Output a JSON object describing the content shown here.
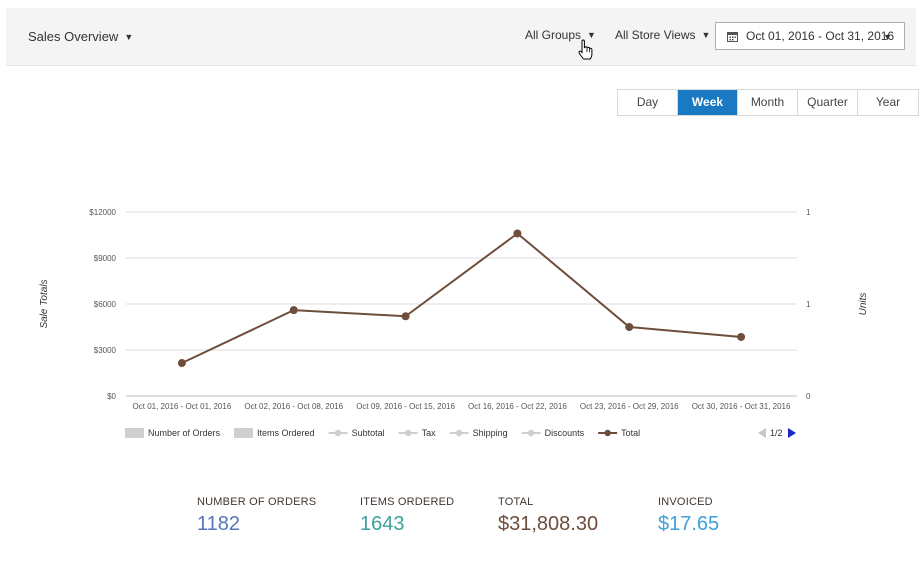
{
  "header": {
    "overview_label": "Sales Overview",
    "groups_label": "All Groups",
    "stores_label": "All Store Views",
    "date_range": "Oct 01, 2016 - Oct 31, 2016"
  },
  "periods": [
    {
      "label": "Day",
      "active": false
    },
    {
      "label": "Week",
      "active": true
    },
    {
      "label": "Month",
      "active": false
    },
    {
      "label": "Quarter",
      "active": false
    },
    {
      "label": "Year",
      "active": false
    }
  ],
  "chart_data": {
    "type": "line",
    "categories": [
      "Oct 01, 2016 - Oct 01, 2016",
      "Oct 02, 2016 - Oct 08, 2016",
      "Oct 09, 2016 - Oct 15, 2016",
      "Oct 16, 2016 - Oct 22, 2016",
      "Oct 23, 2016 - Oct 29, 2016",
      "Oct 30, 2016 - Oct 31, 2016"
    ],
    "series": [
      {
        "name": "Total",
        "values": [
          2150,
          5600,
          5200,
          10600,
          4500,
          3850
        ],
        "color": "#6e4d3b"
      }
    ],
    "ylabel_left": "Sale Totals",
    "ylabel_right": "Units",
    "y_ticks_left": [
      "$0",
      "$3000",
      "$6000",
      "$9000",
      "$12000"
    ],
    "y_ticks_right": [
      "0",
      "1",
      "1"
    ],
    "ylim": [
      0,
      12000
    ],
    "grid": true,
    "legend": {
      "placement": "bottom",
      "items": [
        {
          "label": "Number of Orders",
          "kind": "box",
          "color": "#cfcfcf"
        },
        {
          "label": "Items Ordered",
          "kind": "box",
          "color": "#cfcfcf"
        },
        {
          "label": "Subtotal",
          "kind": "line",
          "color": "#cfcfcf"
        },
        {
          "label": "Tax",
          "kind": "line",
          "color": "#cfcfcf"
        },
        {
          "label": "Shipping",
          "kind": "line",
          "color": "#cfcfcf"
        },
        {
          "label": "Discounts",
          "kind": "line",
          "color": "#cfcfcf"
        },
        {
          "label": "Total",
          "kind": "line",
          "color": "#6e4d3b"
        }
      ],
      "page": "1/2"
    }
  },
  "totals": [
    {
      "label": "Number of Orders",
      "value": "1182",
      "color": "#5875b8"
    },
    {
      "label": "Items Ordered",
      "value": "1643",
      "color": "#3aa39b"
    },
    {
      "label": "Total",
      "value": "$31,808.30",
      "color": "#6e4d3b"
    },
    {
      "label": "Invoiced",
      "value": "$17.65",
      "color": "#3d9fdb"
    }
  ]
}
